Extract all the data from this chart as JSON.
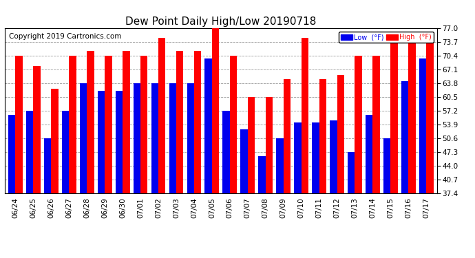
{
  "title": "Dew Point Daily High/Low 20190718",
  "copyright": "Copyright 2019 Cartronics.com",
  "dates": [
    "06/24",
    "06/25",
    "06/26",
    "06/27",
    "06/28",
    "06/29",
    "06/30",
    "07/01",
    "07/02",
    "07/03",
    "07/04",
    "07/05",
    "07/06",
    "07/07",
    "07/08",
    "07/09",
    "07/10",
    "07/11",
    "07/12",
    "07/13",
    "07/14",
    "07/15",
    "07/16",
    "07/17"
  ],
  "high": [
    70.4,
    68.0,
    62.6,
    70.4,
    71.6,
    70.4,
    71.6,
    70.4,
    74.8,
    71.6,
    71.6,
    77.0,
    70.4,
    60.5,
    60.5,
    64.9,
    74.8,
    64.9,
    65.8,
    70.4,
    70.4,
    73.7,
    73.7,
    73.7
  ],
  "low": [
    56.3,
    57.2,
    50.6,
    57.2,
    63.8,
    62.0,
    62.0,
    63.8,
    63.8,
    63.8,
    63.8,
    69.8,
    57.2,
    52.8,
    46.4,
    50.6,
    54.5,
    54.5,
    55.0,
    47.3,
    56.3,
    50.6,
    64.4,
    69.8
  ],
  "ylim_min": 37.4,
  "ylim_max": 77.0,
  "yticks": [
    37.4,
    40.7,
    44.0,
    47.3,
    50.6,
    53.9,
    57.2,
    60.5,
    63.8,
    67.1,
    70.4,
    73.7,
    77.0
  ],
  "bar_width": 0.4,
  "high_color": "#FF0000",
  "low_color": "#0000EE",
  "bg_color": "#FFFFFF",
  "plot_bg_color": "#FFFFFF",
  "grid_color": "#999999",
  "legend_high_label": "High  (°F)",
  "legend_low_label": "Low  (°F)",
  "title_fontsize": 11,
  "copyright_fontsize": 7.5
}
